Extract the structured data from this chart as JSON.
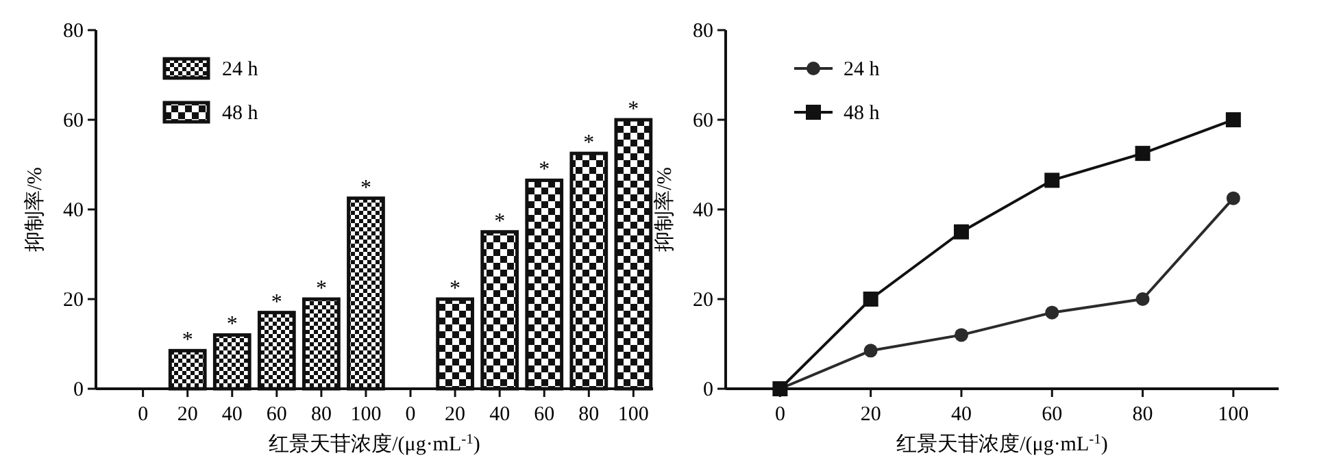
{
  "chart_data": [
    {
      "type": "bar",
      "ylabel": "抑制率/%",
      "xlabel": "红景天苷浓度/(μg·mL$^{-1}$)",
      "categories": [
        "0",
        "20",
        "40",
        "60",
        "80",
        "100",
        "0",
        "20",
        "40",
        "60",
        "80",
        "100"
      ],
      "series": [
        {
          "name": "24 h",
          "color": "#111111",
          "values": [
            0,
            8.5,
            12,
            17,
            20,
            42.5,
            null,
            null,
            null,
            null,
            null,
            null
          ],
          "value_labels": [
            null,
            "*",
            "*",
            "*",
            "*",
            "*",
            null,
            null,
            null,
            null,
            null,
            null
          ]
        },
        {
          "name": "48 h",
          "color": "#111111",
          "values": [
            null,
            null,
            null,
            null,
            null,
            null,
            0,
            20,
            35,
            46.5,
            52.5,
            60
          ],
          "value_labels": [
            null,
            null,
            null,
            null,
            null,
            null,
            null,
            "*",
            "*",
            "*",
            "*",
            "*"
          ]
        }
      ],
      "ylim": [
        0,
        80
      ],
      "yticks": [
        0,
        20,
        40,
        60,
        80
      ],
      "legend": "top left"
    },
    {
      "type": "line",
      "ylabel": "抑制率/%",
      "xlabel": "红景天苷浓度/(μg·mL$^{-1}$)",
      "x": [
        0,
        20,
        40,
        60,
        80,
        100
      ],
      "series": [
        {
          "name": "24 h",
          "color": "#2b2b2b",
          "marker": "circle",
          "values": [
            0,
            8.5,
            12,
            17,
            20,
            42.5
          ]
        },
        {
          "name": "48 h",
          "color": "#111111",
          "marker": "square",
          "values": [
            0,
            20,
            35,
            46.5,
            52.5,
            60
          ]
        }
      ],
      "xlim": [
        -12,
        110
      ],
      "xticks": [
        0,
        20,
        40,
        60,
        80,
        100
      ],
      "ylim": [
        0,
        80
      ],
      "yticks": [
        0,
        20,
        40,
        60,
        80
      ],
      "legend": "top left"
    }
  ]
}
